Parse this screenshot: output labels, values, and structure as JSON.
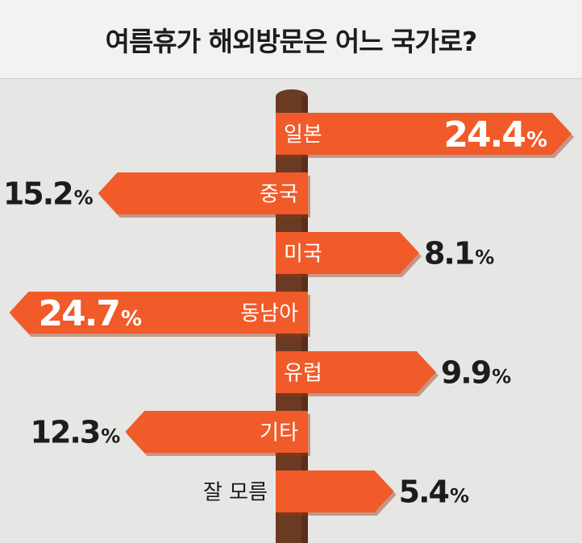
{
  "title": "여름휴가 해외방문은 어느 국가로?",
  "colors": {
    "sign": "#f15a29",
    "sign_shadow": "#9e3614",
    "post": "#6b3a22",
    "post_dark": "#4a2614",
    "value_text": "#1c1c1c",
    "sign_text": "#ffffff",
    "background": "#e6e6e5"
  },
  "chart_data": {
    "type": "bar",
    "unit": "%",
    "categories": [
      "일본",
      "중국",
      "미국",
      "동남아",
      "유럽",
      "기타",
      "잘 모름"
    ],
    "values": [
      24.4,
      15.2,
      8.1,
      24.7,
      9.9,
      12.3,
      5.4
    ],
    "value_labels": [
      "24.4",
      "15.2",
      "8.1",
      "24.7",
      "9.9",
      "12.3",
      "5.4"
    ],
    "directions": [
      "right",
      "left",
      "right",
      "left",
      "right",
      "left",
      "right"
    ]
  }
}
